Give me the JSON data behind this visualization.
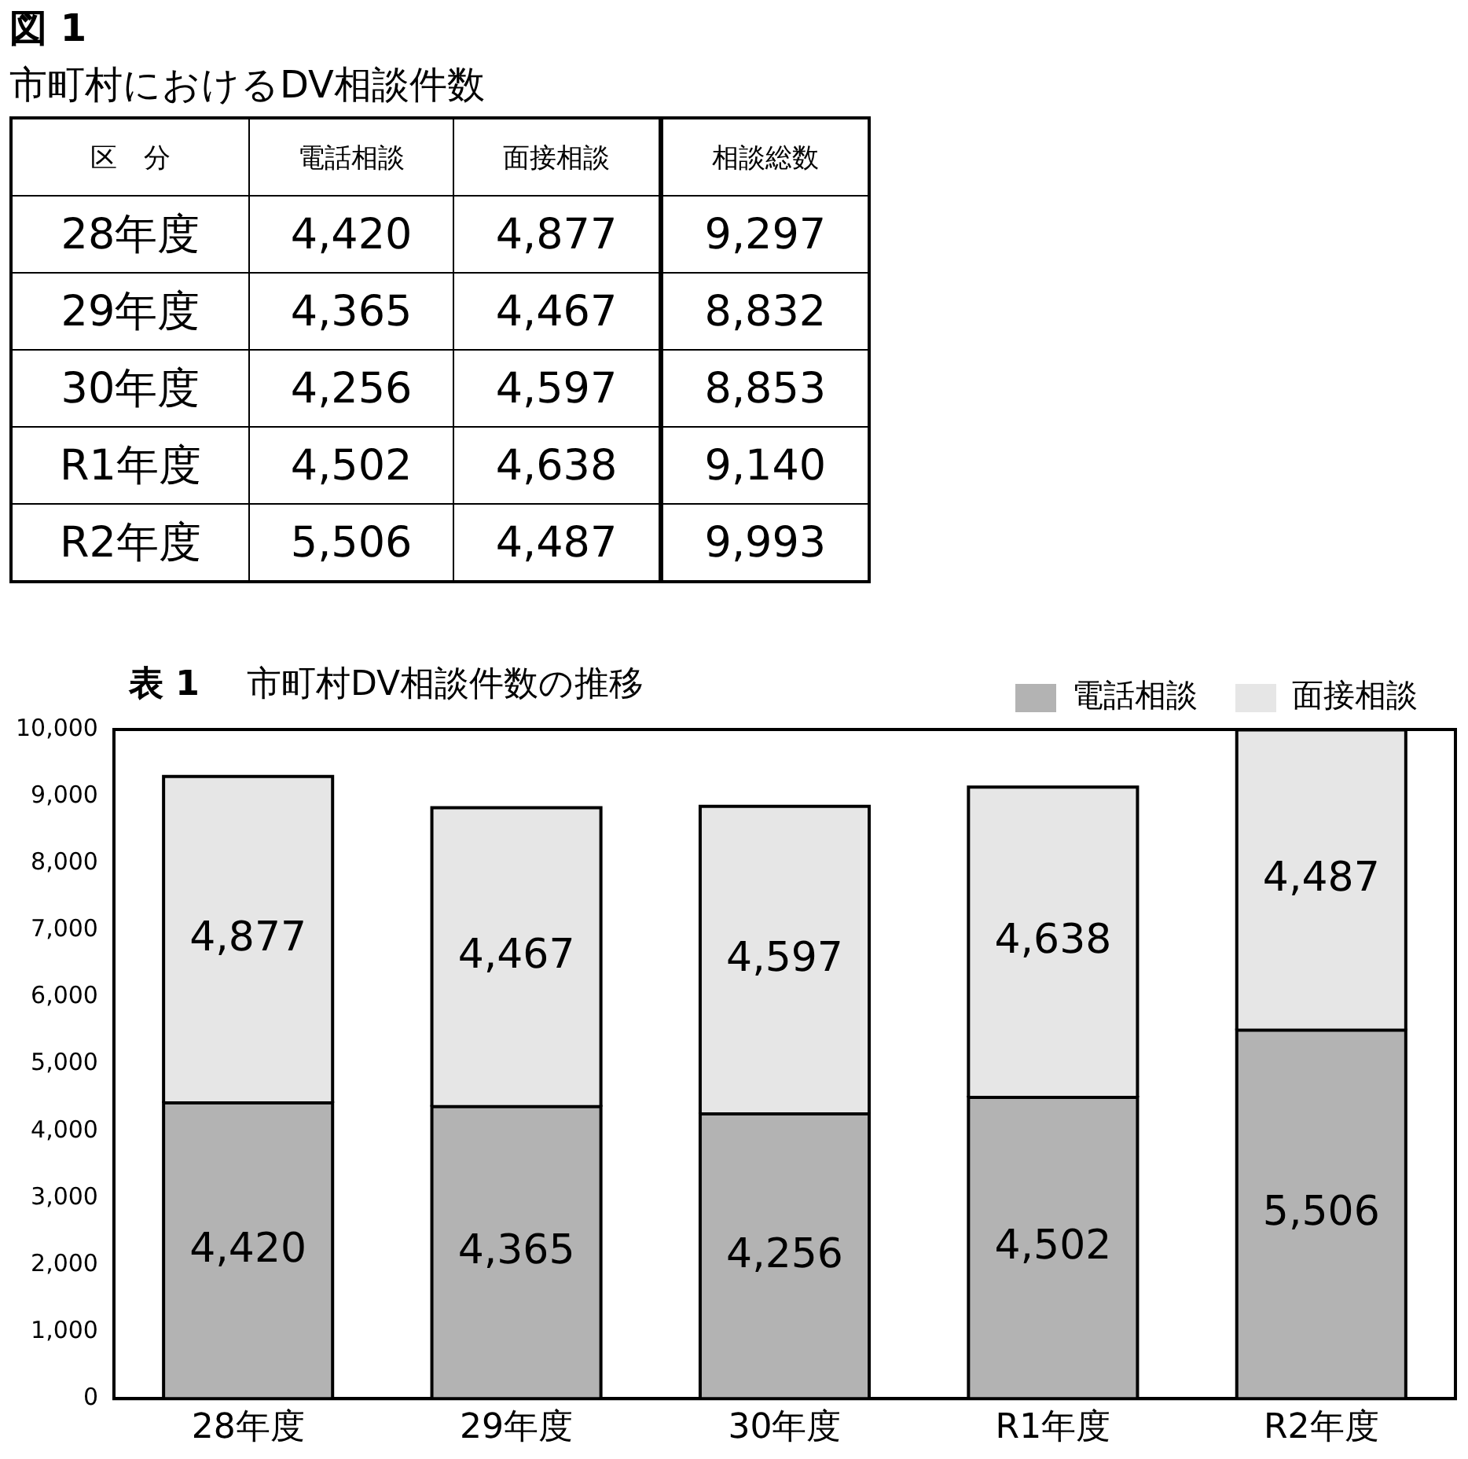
{
  "chart_data": [
    {
      "type": "heatmap",
      "title": "市町村におけるDV相談件数",
      "annotations": [
        "図 1",
        "区　分"
      ],
      "categories": [
        "電話相談",
        "面接相談",
        "相談総数"
      ],
      "y_categories": [
        "28年度",
        "29年度",
        "30年度",
        "R1年度",
        "R2年度"
      ],
      "cells": [
        [
          4420,
          4877,
          9297
        ],
        [
          4365,
          4467,
          8832
        ],
        [
          4256,
          4597,
          8853
        ],
        [
          4502,
          4638,
          9140
        ],
        [
          5506,
          4487,
          9993
        ]
      ],
      "cell_labels": [
        [
          "4,420",
          "4,877",
          "9,297"
        ],
        [
          "4,365",
          "4,467",
          "8,832"
        ],
        [
          "4,256",
          "4,597",
          "8,853"
        ],
        [
          "4,502",
          "4,638",
          "9,140"
        ],
        [
          "5,506",
          "4,487",
          "9,993"
        ]
      ]
    },
    {
      "type": "bar",
      "title": "表 1　市町村DV相談件数の推移",
      "categories": [
        "28年度",
        "29年度",
        "30年度",
        "R1年度",
        "R2年度"
      ],
      "series": [
        {
          "name": "電話相談",
          "color": "#b3b3b3",
          "values": [
            4420,
            4365,
            4256,
            4502,
            5506
          ],
          "value_labels": [
            "4,420",
            "4,365",
            "4,256",
            "4,502",
            "5,506"
          ]
        },
        {
          "name": "面接相談",
          "color": "#e6e6e6",
          "values": [
            4877,
            4467,
            4597,
            4638,
            4487
          ],
          "value_labels": [
            "4,877",
            "4,467",
            "4,597",
            "4,638",
            "4,487"
          ]
        }
      ],
      "stacked": true,
      "ylim": [
        0,
        10000
      ],
      "yticks": [
        0,
        {
          "value": 1000,
          "label": "1,000"
        },
        {
          "value": 2000,
          "label": "2,000"
        },
        {
          "value": 3000,
          "label": "3,000"
        },
        {
          "value": 4000,
          "label": "4,000"
        },
        {
          "value": 5000,
          "label": "5,000"
        },
        {
          "value": 6000,
          "label": "6,000"
        },
        {
          "value": 7000,
          "label": "7,000"
        },
        {
          "value": 8000,
          "label": "8,000"
        },
        {
          "value": 9000,
          "label": "9,000"
        },
        {
          "value": 10000,
          "label": "10,000"
        }
      ],
      "grid": false,
      "legend": "top right"
    }
  ]
}
